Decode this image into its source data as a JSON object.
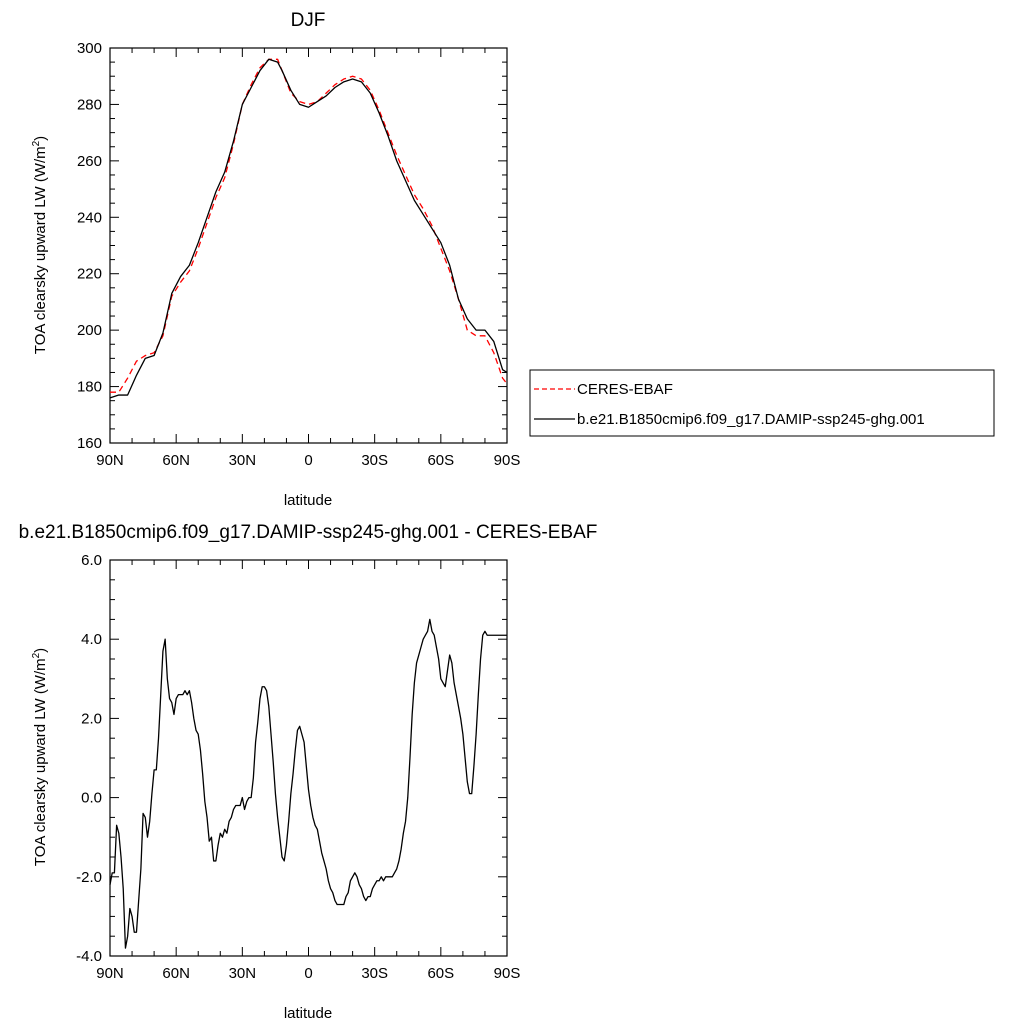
{
  "chart_data": [
    {
      "type": "line",
      "title": "DJF",
      "xlabel": "latitude",
      "ylabel": "TOA clearsky upward LW (W/m",
      "ylabel_sup": "2",
      "ylabel_tail": ")",
      "xlim": [
        90,
        -90
      ],
      "ylim": [
        160,
        300
      ],
      "xticks": [
        90,
        60,
        30,
        0,
        -30,
        -60,
        -90
      ],
      "xtick_labels": [
        "90N",
        "60N",
        "30N",
        "0",
        "30S",
        "60S",
        "90S"
      ],
      "yticks": [
        160,
        180,
        200,
        220,
        240,
        260,
        280,
        300
      ],
      "ytick_labels": [
        "160",
        "180",
        "200",
        "220",
        "240",
        "260",
        "280",
        "300"
      ],
      "grid": false,
      "legend_position": "right",
      "series": [
        {
          "name": "CERES-EBAF",
          "color": "#ff0000",
          "dash": "dashed",
          "x": [
            90,
            86,
            82,
            78,
            74,
            70,
            66,
            62,
            58,
            54,
            50,
            46,
            42,
            38,
            34,
            30,
            26,
            22,
            18,
            14,
            12,
            8,
            4,
            0,
            -4,
            -8,
            -12,
            -16,
            -20,
            -24,
            -28,
            -32,
            -36,
            -40,
            -44,
            -48,
            -52,
            -56,
            -60,
            -64,
            -68,
            -72,
            -76,
            -80,
            -84,
            -88,
            -90
          ],
          "y": [
            178,
            178,
            183,
            189,
            191,
            192,
            198,
            212,
            217,
            221,
            229,
            238,
            247,
            254,
            266,
            280,
            287,
            293,
            296,
            296,
            292,
            284,
            281,
            280,
            281,
            284,
            287,
            289,
            290,
            289,
            285,
            278,
            270,
            262,
            255,
            248,
            243,
            237,
            229,
            221,
            211,
            200,
            198,
            198,
            192,
            183,
            181
          ]
        },
        {
          "name": "b.e21.B1850cmip6.f09_g17.DAMIP-ssp245-ghg.001",
          "color": "#000000",
          "dash": "solid",
          "x": [
            90,
            86,
            82,
            78,
            74,
            70,
            66,
            62,
            58,
            54,
            50,
            46,
            42,
            38,
            34,
            30,
            26,
            22,
            18,
            14,
            12,
            8,
            4,
            0,
            -4,
            -8,
            -12,
            -16,
            -20,
            -24,
            -28,
            -32,
            -36,
            -40,
            -44,
            -48,
            -52,
            -56,
            -60,
            -64,
            -68,
            -72,
            -76,
            -80,
            -84,
            -88,
            -90
          ],
          "y": [
            176,
            177,
            177,
            184,
            190,
            191,
            199,
            213,
            219,
            223,
            231,
            240,
            249,
            256,
            267,
            280,
            286,
            292,
            296,
            295,
            292,
            285,
            280,
            279,
            281,
            283,
            286,
            288,
            289,
            288,
            284,
            277,
            269,
            260,
            253,
            246,
            241,
            236,
            231,
            223,
            211,
            204,
            200,
            200,
            196,
            186,
            185
          ]
        }
      ]
    },
    {
      "type": "line",
      "title": "b.e21.B1850cmip6.f09_g17.DAMIP-ssp245-ghg.001 - CERES-EBAF",
      "xlabel": "latitude",
      "ylabel": "TOA clearsky upward LW (W/m",
      "ylabel_sup": "2",
      "ylabel_tail": ")",
      "xlim": [
        90,
        -90
      ],
      "ylim": [
        -4,
        6
      ],
      "xticks": [
        90,
        60,
        30,
        0,
        -30,
        -60,
        -90
      ],
      "xtick_labels": [
        "90N",
        "60N",
        "30N",
        "0",
        "30S",
        "60S",
        "90S"
      ],
      "yticks": [
        -4,
        -2,
        0,
        2,
        4,
        6
      ],
      "ytick_labels": [
        "-4.0",
        "-2.0",
        "0.0",
        "2.0",
        "4.0",
        "6.0"
      ],
      "grid": false,
      "series": [
        {
          "color": "#000000",
          "dash": "solid",
          "x": [
            90,
            89,
            88,
            87,
            86,
            85,
            84,
            83,
            82,
            81,
            80,
            79,
            78,
            77,
            76,
            75,
            74,
            73,
            72,
            71,
            70,
            69,
            68,
            67,
            66,
            65,
            64,
            63,
            62,
            61,
            60,
            59,
            58,
            57,
            56,
            55,
            54,
            53,
            52,
            51,
            50,
            49,
            48,
            47,
            46,
            45,
            44,
            43,
            42,
            41,
            40,
            39,
            38,
            37,
            36,
            35,
            34,
            33,
            32,
            31,
            30,
            29,
            28,
            27,
            26,
            25,
            24,
            23,
            22,
            21,
            20,
            19,
            18,
            17,
            16,
            15,
            14,
            13,
            12,
            11,
            10,
            9,
            8,
            7,
            6,
            5,
            4,
            3,
            2,
            1,
            0,
            -1,
            -2,
            -3,
            -4,
            -5,
            -6,
            -7,
            -8,
            -9,
            -10,
            -11,
            -12,
            -13,
            -14,
            -15,
            -16,
            -17,
            -18,
            -19,
            -20,
            -21,
            -22,
            -23,
            -24,
            -25,
            -26,
            -27,
            -28,
            -29,
            -30,
            -31,
            -32,
            -33,
            -34,
            -35,
            -36,
            -37,
            -38,
            -39,
            -40,
            -41,
            -42,
            -43,
            -44,
            -45,
            -46,
            -47,
            -48,
            -49,
            -50,
            -51,
            -52,
            -53,
            -54,
            -55,
            -56,
            -57,
            -58,
            -59,
            -60,
            -61,
            -62,
            -63,
            -64,
            -65,
            -66,
            -67,
            -68,
            -69,
            -70,
            -71,
            -72,
            -73,
            -74,
            -75,
            -76,
            -77,
            -78,
            -79,
            -80,
            -81,
            -82,
            -83,
            -84,
            -85,
            -86,
            -87,
            -88,
            -89,
            -90
          ],
          "y": [
            -2.2,
            -1.9,
            -1.9,
            -0.7,
            -0.9,
            -1.5,
            -2.3,
            -3.8,
            -3.5,
            -2.8,
            -3.0,
            -3.4,
            -3.4,
            -2.6,
            -1.8,
            -0.4,
            -0.5,
            -1.0,
            -0.6,
            0.1,
            0.7,
            0.7,
            1.5,
            2.6,
            3.7,
            4.0,
            3.0,
            2.5,
            2.4,
            2.1,
            2.5,
            2.6,
            2.6,
            2.6,
            2.7,
            2.6,
            2.7,
            2.4,
            2.0,
            1.7,
            1.6,
            1.2,
            0.6,
            -0.1,
            -0.5,
            -1.1,
            -1.0,
            -1.6,
            -1.6,
            -1.2,
            -0.9,
            -1.0,
            -0.8,
            -0.9,
            -0.6,
            -0.5,
            -0.3,
            -0.2,
            -0.2,
            -0.2,
            0.0,
            -0.3,
            -0.1,
            0.0,
            0.0,
            0.5,
            1.4,
            1.9,
            2.5,
            2.8,
            2.8,
            2.7,
            2.3,
            1.6,
            0.9,
            0.1,
            -0.5,
            -1.0,
            -1.5,
            -1.6,
            -1.2,
            -0.6,
            0.1,
            0.6,
            1.2,
            1.7,
            1.8,
            1.6,
            1.4,
            0.8,
            0.2,
            -0.2,
            -0.5,
            -0.7,
            -0.8,
            -1.1,
            -1.4,
            -1.6,
            -1.8,
            -2.1,
            -2.3,
            -2.4,
            -2.6,
            -2.7,
            -2.7,
            -2.7,
            -2.7,
            -2.5,
            -2.4,
            -2.1,
            -2.0,
            -1.9,
            -2.0,
            -2.2,
            -2.3,
            -2.5,
            -2.6,
            -2.5,
            -2.5,
            -2.3,
            -2.2,
            -2.1,
            -2.1,
            -2.0,
            -2.1,
            -2.0,
            -2.0,
            -2.0,
            -2.0,
            -1.9,
            -1.8,
            -1.6,
            -1.3,
            -0.9,
            -0.6,
            0.0,
            1.0,
            2.1,
            2.9,
            3.4,
            3.6,
            3.8,
            4.0,
            4.1,
            4.2,
            4.5,
            4.2,
            4.1,
            3.8,
            3.5,
            3.0,
            2.9,
            2.8,
            3.2,
            3.6,
            3.4,
            2.9,
            2.6,
            2.3,
            2.0,
            1.6,
            1.0,
            0.4,
            0.1,
            0.1,
            0.8,
            1.6,
            2.6,
            3.5,
            4.1,
            4.2,
            4.1,
            4.1,
            4.1,
            4.1,
            4.1,
            4.1,
            4.1,
            4.1,
            4.1,
            4.1
          ]
        }
      ]
    }
  ]
}
